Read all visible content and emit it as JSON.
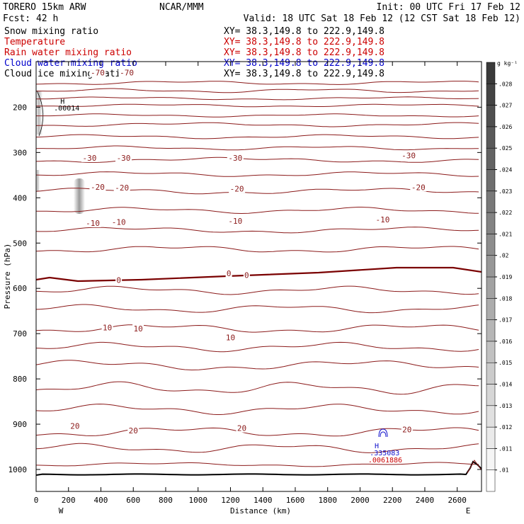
{
  "header": {
    "model": "TORERO  15km ARW",
    "center": "NCAR/MMM",
    "init": "Init: 00 UTC Fri 17 Feb 12",
    "fcst": "Fcst:   42 h",
    "valid": "Valid: 18 UTC Sat 18 Feb 12 (12 CST Sat 18 Feb 12)"
  },
  "fields": [
    {
      "name": "Snow mixing ratio",
      "xy": "XY=  38.3,149.8 to 222.9,149.8",
      "color": "#000000"
    },
    {
      "name": "Temperature",
      "xy": "XY=  38.3,149.8 to 222.9,149.8",
      "color": "#cc0000"
    },
    {
      "name": "Rain water mixing ratio",
      "xy": "XY=  38.3,149.8 to 222.9,149.8",
      "color": "#cc0000"
    },
    {
      "name": "Cloud water mixing ratio",
      "xy": "XY=  38.3,149.8 to 222.9,149.8",
      "color": "#0000cc"
    },
    {
      "name": "Cloud ice mixing ratio",
      "xy": "XY=  38.3,149.8 to 222.9,149.8",
      "color": "#000000"
    }
  ],
  "colors": {
    "isotherm": "#8b1a1a",
    "zero_line": "#7a0000",
    "cloud_water": "#1010cc",
    "rain_label": "#cc0000",
    "ground": "#000000"
  },
  "chart_data": {
    "type": "cross-section",
    "xlabel": "Distance (km)",
    "ylabel": "Pressure (hPa)",
    "xlim": [
      0,
      2750
    ],
    "ylim": [
      1050,
      100
    ],
    "x_ticks": [
      0,
      200,
      400,
      600,
      800,
      1000,
      1200,
      1400,
      1600,
      1800,
      2000,
      2200,
      2400,
      2600
    ],
    "x_tick_labels": [
      "0",
      "200",
      "400",
      "600",
      "800",
      "1000",
      "1200",
      "1400",
      "1600",
      "1800",
      "2000",
      "2200",
      "2400",
      "2600"
    ],
    "y_ticks": [
      200,
      300,
      400,
      500,
      600,
      700,
      800,
      900,
      1000
    ],
    "y_tick_labels": [
      "200",
      "300",
      "400",
      "500",
      "600",
      "700",
      "800",
      "900",
      "1000"
    ],
    "left_end": "W",
    "right_end": "E",
    "isotherm_labels": [
      {
        "text": "-70",
        "x": 380,
        "p": 130
      },
      {
        "text": "-70",
        "x": 560,
        "p": 130
      },
      {
        "text": "-30",
        "x": 330,
        "p": 318
      },
      {
        "text": "-30",
        "x": 540,
        "p": 318
      },
      {
        "text": "-30",
        "x": 1230,
        "p": 318
      },
      {
        "text": "-30",
        "x": 2300,
        "p": 313
      },
      {
        "text": "-20",
        "x": 380,
        "p": 382
      },
      {
        "text": "-20",
        "x": 530,
        "p": 384
      },
      {
        "text": "-20",
        "x": 1240,
        "p": 386
      },
      {
        "text": "-20",
        "x": 2360,
        "p": 383
      },
      {
        "text": "-10",
        "x": 350,
        "p": 462
      },
      {
        "text": "-10",
        "x": 510,
        "p": 460
      },
      {
        "text": "-10",
        "x": 1230,
        "p": 457
      },
      {
        "text": "-10",
        "x": 2140,
        "p": 454
      },
      {
        "text": "0",
        "x": 510,
        "p": 588
      },
      {
        "text": "0",
        "x": 1190,
        "p": 573
      },
      {
        "text": "0",
        "x": 1300,
        "p": 577
      },
      {
        "text": "10",
        "x": 440,
        "p": 693
      },
      {
        "text": "10",
        "x": 630,
        "p": 695
      },
      {
        "text": "10",
        "x": 1200,
        "p": 715
      },
      {
        "text": "20",
        "x": 240,
        "p": 910
      },
      {
        "text": "20",
        "x": 600,
        "p": 920
      },
      {
        "text": "20",
        "x": 1270,
        "p": 915
      },
      {
        "text": "20",
        "x": 2290,
        "p": 918
      }
    ],
    "max_markers": [
      {
        "text": "H",
        "x": 150,
        "p": 192,
        "color": "#000000"
      },
      {
        "text": ".00014",
        "x": 110,
        "p": 207,
        "color": "#000000"
      },
      {
        "text": "H",
        "x": 2090,
        "p": 953,
        "color": "#1010cc"
      },
      {
        "text": ".335083",
        "x": 2060,
        "p": 969,
        "color": "#1010cc"
      },
      {
        "text": ".0061886",
        "x": 2050,
        "p": 984,
        "color": "#cc0000"
      }
    ],
    "colorbar": {
      "unit": "g kg⁻¹",
      "labels": [
        ".01",
        ".011",
        ".012",
        ".013",
        ".014",
        ".015",
        ".016",
        ".017",
        ".018",
        ".019",
        ".02",
        ".021",
        ".022",
        ".023",
        ".024",
        ".025",
        ".026",
        ".027",
        ".028"
      ]
    }
  }
}
